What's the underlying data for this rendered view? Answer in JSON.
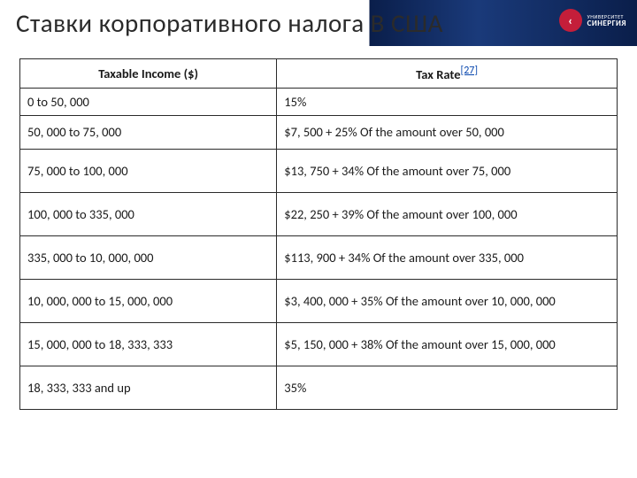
{
  "header": {
    "title": "Ставки корпоративного налога В США",
    "logo": {
      "symbol": "‹",
      "top_text": "УНИВЕРСИТЕТ",
      "bottom_text": "СИНЕРГИЯ"
    }
  },
  "table": {
    "columns": [
      "Taxable Income ($)",
      "Tax Rate"
    ],
    "ref": "[27]",
    "rows": [
      {
        "income": "0 to 50, 000",
        "rate": "15%"
      },
      {
        "income": "50, 000 to 75, 000",
        "rate": "$7, 500 + 25% Of the amount over 50, 000"
      },
      {
        "income": "75, 000 to 100, 000",
        "rate": "$13, 750 + 34% Of the amount over 75, 000"
      },
      {
        "income": "100, 000 to 335, 000",
        "rate": "$22, 250 + 39% Of the amount over 100, 000"
      },
      {
        "income": "335, 000 to 10, 000, 000",
        "rate": "$113, 900 + 34% Of the amount over 335, 000"
      },
      {
        "income": "10, 000, 000 to 15, 000, 000",
        "rate": "$3, 400, 000 + 35% Of the amount over 10, 000, 000"
      },
      {
        "income": "15, 000, 000 to 18, 333, 333",
        "rate": "$5, 150, 000 + 38% Of the amount over 15, 000, 000"
      },
      {
        "income": "18, 333, 333 and up",
        "rate": "35%"
      }
    ]
  }
}
